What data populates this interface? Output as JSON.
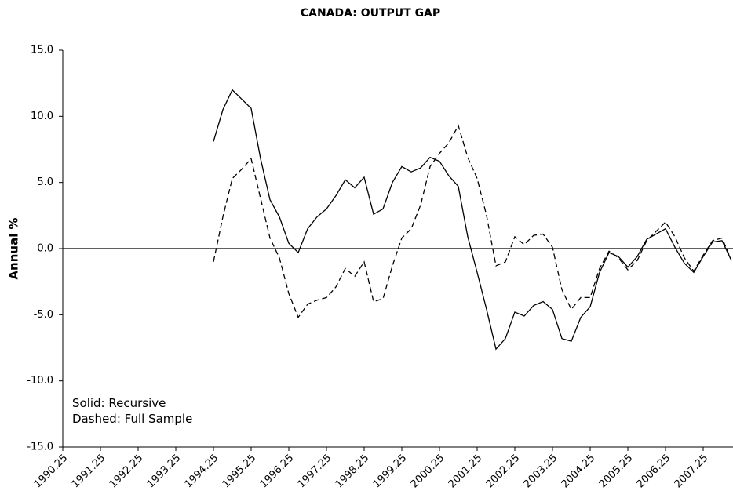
{
  "chart_data": {
    "type": "line",
    "title": "CANADA: OUTPUT GAP",
    "y_label": "Annual %",
    "annotations": [
      "Solid: Recursive",
      "Dashed: Full Sample"
    ],
    "categories": [
      "1990.25",
      null,
      null,
      null,
      "1991.25",
      null,
      null,
      null,
      "1992.25",
      null,
      null,
      null,
      "1993.25",
      null,
      null,
      null,
      "1994.25",
      null,
      null,
      null,
      "1995.25",
      null,
      null,
      null,
      "1996.25",
      null,
      null,
      null,
      "1997.25",
      null,
      null,
      null,
      "1998.25",
      null,
      null,
      null,
      "1999.25",
      null,
      null,
      null,
      "2000.25",
      null,
      null,
      null,
      "2001.25",
      null,
      null,
      null,
      "2002.25",
      null,
      null,
      null,
      "2003.25",
      null,
      null,
      null,
      "2004.25",
      null,
      null,
      null,
      "2005.25",
      null,
      null,
      null,
      "2006.25",
      null,
      null,
      null,
      "2007.25",
      null,
      null,
      null
    ],
    "series": [
      {
        "color": "#000000",
        "dash": "solid",
        "values": [
          null,
          null,
          null,
          null,
          null,
          null,
          null,
          null,
          null,
          null,
          null,
          null,
          null,
          null,
          null,
          null,
          8.1,
          10.5,
          12.0,
          11.3,
          10.6,
          6.8,
          3.7,
          2.4,
          0.4,
          -0.3,
          1.5,
          2.4,
          3.0,
          4.0,
          5.2,
          4.6,
          5.4,
          2.6,
          3.0,
          5.0,
          6.2,
          5.8,
          6.1,
          6.9,
          6.6,
          5.5,
          4.7,
          0.9,
          -1.8,
          -4.6,
          -7.6,
          -6.8,
          -4.8,
          -5.1,
          -4.3,
          -4.0,
          -4.6,
          -6.8,
          -7.0,
          -5.2,
          -4.4,
          -1.8,
          -0.3,
          -0.6,
          -1.4,
          -0.6,
          0.7,
          1.1,
          1.5,
          0.1,
          -1.1,
          -1.8,
          -0.6,
          0.5,
          0.6,
          -0.9
        ]
      },
      {
        "color": "#000000",
        "dash": "dashed",
        "values": [
          null,
          null,
          null,
          null,
          null,
          null,
          null,
          null,
          null,
          null,
          null,
          null,
          null,
          null,
          null,
          null,
          -1.0,
          2.4,
          5.3,
          6.0,
          6.8,
          3.8,
          0.8,
          -0.7,
          -3.4,
          -5.2,
          -4.2,
          -3.9,
          -3.7,
          -2.9,
          -1.5,
          -2.1,
          -1.0,
          -4.0,
          -3.8,
          -1.3,
          0.8,
          1.5,
          3.3,
          6.2,
          7.2,
          8.0,
          9.3,
          6.9,
          5.3,
          2.5,
          -1.3,
          -1.0,
          0.9,
          0.3,
          1.0,
          1.1,
          0.1,
          -3.1,
          -4.6,
          -3.7,
          -3.7,
          -1.5,
          -0.2,
          -0.7,
          -1.6,
          -0.9,
          0.6,
          1.3,
          2.0,
          0.9,
          -0.7,
          -1.7,
          -0.5,
          0.6,
          0.8,
          -0.9
        ]
      }
    ],
    "ylim": [
      -15,
      15
    ],
    "yticks": [
      {
        "value": -15,
        "label": "-15.0"
      },
      {
        "value": -10,
        "label": "-10.0"
      },
      {
        "value": -5,
        "label": "-5.0"
      },
      {
        "value": 0,
        "label": "0.0"
      },
      {
        "value": 5,
        "label": "5.0"
      },
      {
        "value": 10,
        "label": "10.0"
      },
      {
        "value": 15,
        "label": "15.0"
      }
    ],
    "zero_line": true,
    "grid": false
  }
}
